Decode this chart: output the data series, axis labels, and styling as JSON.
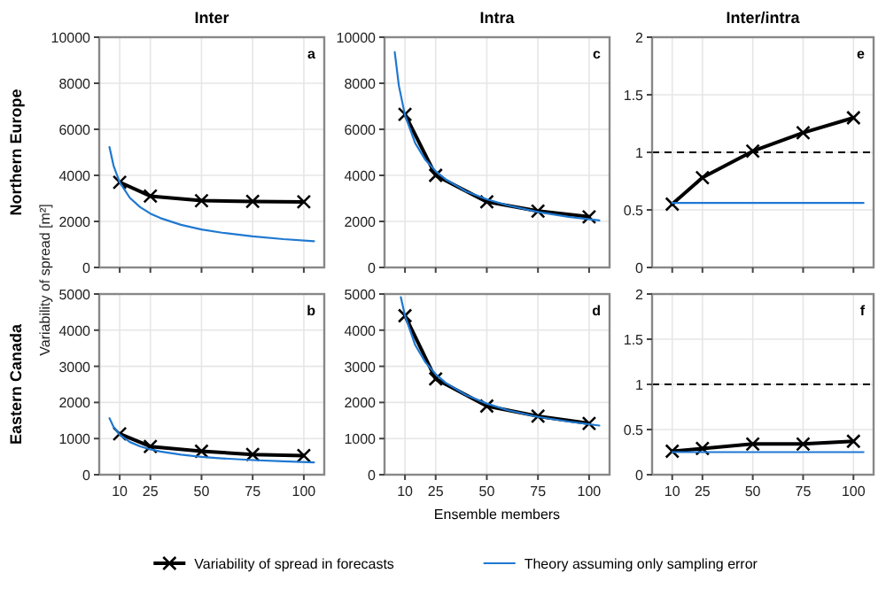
{
  "chart_data": [
    {
      "type": "line",
      "title": "Inter",
      "ylabel": "Variability of spread [m²]",
      "annotations": [
        "a",
        "Northern Europe"
      ],
      "xlim": [
        0,
        110
      ],
      "xticks": [
        10,
        25,
        50,
        75,
        100
      ],
      "ylim": [
        0,
        10000
      ],
      "yticks": [
        0,
        2000,
        4000,
        6000,
        8000,
        10000
      ],
      "grid": true,
      "tick_labels": "y",
      "series": [
        {
          "color": "#000000",
          "marker": "cross",
          "x": [
            10,
            25,
            50,
            75,
            100
          ],
          "values": [
            3700,
            3100,
            2900,
            2870,
            2850
          ]
        },
        {
          "color": "#1f78d1",
          "marker": "none",
          "x": [
            5,
            7,
            10,
            15,
            20,
            25,
            30,
            40,
            50,
            60,
            75,
            90,
            105
          ],
          "values": [
            5230,
            4420,
            3700,
            3020,
            2620,
            2340,
            2140,
            1850,
            1650,
            1510,
            1350,
            1230,
            1140
          ]
        }
      ]
    },
    {
      "type": "line",
      "title": "Intra",
      "annotations": [
        "c"
      ],
      "xlim": [
        0,
        110
      ],
      "xticks": [
        10,
        25,
        50,
        75,
        100
      ],
      "ylim": [
        0,
        10000
      ],
      "yticks": [
        0,
        2000,
        4000,
        6000,
        8000,
        10000
      ],
      "grid": true,
      "tick_labels": "y",
      "series": [
        {
          "color": "#000000",
          "marker": "cross",
          "x": [
            10,
            25,
            50,
            75,
            100
          ],
          "values": [
            6650,
            4000,
            2850,
            2450,
            2200
          ]
        },
        {
          "color": "#1f78d1",
          "marker": "none",
          "x": [
            5,
            7,
            10,
            15,
            20,
            25,
            30,
            40,
            50,
            60,
            75,
            90,
            105
          ],
          "values": [
            9350,
            7900,
            6610,
            5400,
            4670,
            4180,
            3820,
            3300,
            2960,
            2700,
            2410,
            2200,
            2040
          ]
        }
      ]
    },
    {
      "type": "line",
      "title": "Inter/intra",
      "annotations": [
        "e"
      ],
      "xlim": [
        0,
        110
      ],
      "xticks": [
        10,
        25,
        50,
        75,
        100
      ],
      "ylim": [
        0,
        2
      ],
      "yticks": [
        0,
        0.5,
        1,
        1.5,
        2
      ],
      "grid": true,
      "tick_labels": "y",
      "ref_lines": [
        {
          "axis": "y",
          "value": 1,
          "line_style": "dashed",
          "color": "#000000"
        }
      ],
      "series": [
        {
          "color": "#000000",
          "marker": "cross",
          "x": [
            10,
            25,
            50,
            75,
            100
          ],
          "values": [
            0.55,
            0.78,
            1.01,
            1.17,
            1.3
          ]
        },
        {
          "color": "#1f78d1",
          "marker": "none",
          "x": [
            10,
            105
          ],
          "values": [
            0.56,
            0.56
          ]
        }
      ]
    },
    {
      "type": "line",
      "annotations": [
        "b",
        "Eastern Canada"
      ],
      "xlim": [
        0,
        110
      ],
      "xticks": [
        10,
        25,
        50,
        75,
        100
      ],
      "ylim": [
        0,
        5000
      ],
      "yticks": [
        0,
        1000,
        2000,
        3000,
        4000,
        5000
      ],
      "grid": true,
      "series": [
        {
          "color": "#000000",
          "marker": "cross",
          "x": [
            10,
            25,
            50,
            75,
            100
          ],
          "values": [
            1130,
            780,
            650,
            560,
            530
          ]
        },
        {
          "color": "#1f78d1",
          "marker": "none",
          "x": [
            5,
            7,
            10,
            15,
            20,
            25,
            30,
            40,
            50,
            60,
            75,
            90,
            105
          ],
          "values": [
            1565,
            1323,
            1107,
            904,
            783,
            700,
            639,
            553,
            495,
            452,
            404,
            369,
            342
          ]
        }
      ]
    },
    {
      "type": "line",
      "xlabel": "Ensemble members",
      "annotations": [
        "d"
      ],
      "legend": "bottom",
      "xlim": [
        0,
        110
      ],
      "xticks": [
        10,
        25,
        50,
        75,
        100
      ],
      "ylim": [
        0,
        5000
      ],
      "yticks": [
        0,
        1000,
        2000,
        3000,
        4000,
        5000
      ],
      "grid": true,
      "series": [
        {
          "name": "Variability of spread in forecasts",
          "color": "#000000",
          "marker": "cross",
          "x": [
            10,
            25,
            50,
            75,
            100
          ],
          "values": [
            4400,
            2650,
            1900,
            1620,
            1420
          ]
        },
        {
          "name": "Theory assuming only sampling error",
          "color": "#1f78d1",
          "marker": "none",
          "x": [
            8,
            10,
            15,
            20,
            25,
            30,
            40,
            50,
            60,
            75,
            90,
            105
          ],
          "values": [
            4910,
            4400,
            3590,
            3110,
            2780,
            2540,
            2200,
            1970,
            1790,
            1600,
            1470,
            1360
          ]
        }
      ]
    },
    {
      "type": "line",
      "annotations": [
        "f"
      ],
      "xlim": [
        0,
        110
      ],
      "xticks": [
        10,
        25,
        50,
        75,
        100
      ],
      "ylim": [
        0,
        2
      ],
      "yticks": [
        0,
        0.5,
        1,
        1.5,
        2
      ],
      "grid": true,
      "ref_lines": [
        {
          "axis": "y",
          "value": 1,
          "line_style": "dashed",
          "color": "#000000"
        }
      ],
      "series": [
        {
          "color": "#000000",
          "marker": "cross",
          "x": [
            10,
            25,
            50,
            75,
            100
          ],
          "values": [
            0.26,
            0.29,
            0.34,
            0.34,
            0.37
          ]
        },
        {
          "color": "#1f78d1",
          "marker": "none",
          "x": [
            10,
            105
          ],
          "values": [
            0.25,
            0.25
          ]
        }
      ]
    }
  ]
}
